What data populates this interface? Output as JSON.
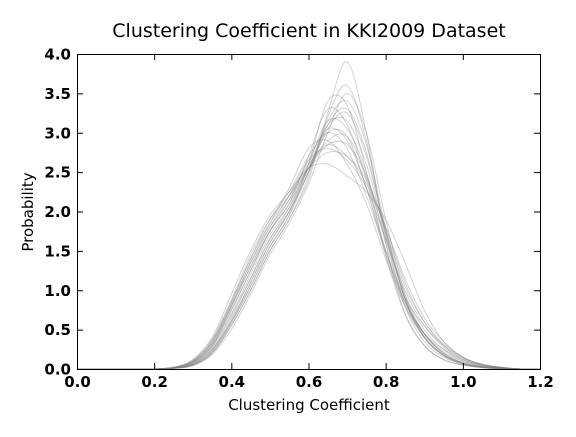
{
  "chart_data": {
    "type": "line",
    "title": "Clustering Coefficient in KKI2009 Dataset",
    "xlabel": "Clustering Coefficient",
    "ylabel": "Probability",
    "xlim": [
      0.0,
      1.2
    ],
    "ylim": [
      0.0,
      4.0
    ],
    "x_ticks": [
      "0.0",
      "0.2",
      "0.4",
      "0.6",
      "0.8",
      "1.0",
      "1.2"
    ],
    "y_ticks": [
      "0.0",
      "0.5",
      "1.0",
      "1.5",
      "2.0",
      "2.5",
      "3.0",
      "3.5",
      "4.0"
    ],
    "grid": false,
    "legend": "none",
    "line_color": "#808080",
    "x_grid": [
      0.0,
      0.05,
      0.1,
      0.15,
      0.2,
      0.25,
      0.3,
      0.35,
      0.4,
      0.45,
      0.5,
      0.55,
      0.6,
      0.65,
      0.7,
      0.75,
      0.8,
      0.85,
      0.9,
      0.95,
      1.0,
      1.05,
      1.1,
      1.15,
      1.2
    ],
    "series": [
      {
        "values": [
          0,
          0,
          0,
          0,
          0,
          0.01,
          0.06,
          0.25,
          0.6,
          1.05,
          1.55,
          1.95,
          2.55,
          3.0,
          2.95,
          2.3,
          1.45,
          0.85,
          0.45,
          0.2,
          0.08,
          0.03,
          0.01,
          0,
          0
        ]
      },
      {
        "values": [
          0,
          0,
          0,
          0,
          0,
          0.02,
          0.1,
          0.35,
          0.85,
          1.4,
          1.85,
          2.2,
          2.6,
          2.85,
          2.7,
          2.35,
          1.8,
          1.15,
          0.65,
          0.35,
          0.15,
          0.05,
          0.02,
          0,
          0
        ]
      },
      {
        "values": [
          0,
          0,
          0,
          0,
          0,
          0.01,
          0.05,
          0.2,
          0.55,
          1.0,
          1.5,
          1.9,
          2.45,
          3.25,
          3.9,
          3.0,
          1.6,
          0.7,
          0.3,
          0.12,
          0.05,
          0.02,
          0,
          0,
          0
        ]
      },
      {
        "values": [
          0,
          0,
          0,
          0,
          0,
          0.01,
          0.08,
          0.3,
          0.75,
          1.25,
          1.75,
          2.1,
          2.7,
          3.3,
          3.1,
          2.4,
          1.5,
          0.8,
          0.4,
          0.18,
          0.07,
          0.02,
          0.01,
          0,
          0
        ]
      },
      {
        "values": [
          0,
          0,
          0,
          0,
          0,
          0.02,
          0.09,
          0.32,
          0.8,
          1.35,
          1.85,
          2.3,
          2.8,
          2.9,
          2.6,
          2.1,
          1.4,
          0.8,
          0.45,
          0.25,
          0.12,
          0.05,
          0.02,
          0,
          0
        ]
      },
      {
        "values": [
          0,
          0,
          0,
          0,
          0,
          0.01,
          0.04,
          0.18,
          0.5,
          0.95,
          1.45,
          1.85,
          2.35,
          3.0,
          3.5,
          3.0,
          1.9,
          0.95,
          0.45,
          0.2,
          0.08,
          0.03,
          0.01,
          0,
          0
        ]
      },
      {
        "values": [
          0,
          0,
          0,
          0,
          0,
          0.02,
          0.12,
          0.4,
          0.95,
          1.5,
          1.95,
          2.25,
          2.55,
          2.6,
          2.45,
          2.25,
          1.9,
          1.35,
          0.75,
          0.35,
          0.15,
          0.06,
          0.02,
          0,
          0
        ]
      },
      {
        "values": [
          0,
          0,
          0,
          0,
          0,
          0.01,
          0.07,
          0.28,
          0.7,
          1.2,
          1.7,
          2.05,
          2.55,
          3.1,
          3.15,
          2.6,
          1.7,
          0.9,
          0.45,
          0.2,
          0.08,
          0.03,
          0.01,
          0,
          0
        ]
      },
      {
        "values": [
          0,
          0,
          0,
          0,
          0,
          0.01,
          0.05,
          0.22,
          0.6,
          1.1,
          1.6,
          2.0,
          2.6,
          3.4,
          3.35,
          2.5,
          1.45,
          0.7,
          0.3,
          0.12,
          0.05,
          0.02,
          0,
          0,
          0
        ]
      },
      {
        "values": [
          0,
          0,
          0,
          0,
          0,
          0.02,
          0.1,
          0.36,
          0.85,
          1.4,
          1.9,
          2.25,
          2.7,
          3.0,
          2.8,
          2.2,
          1.5,
          0.9,
          0.55,
          0.3,
          0.14,
          0.06,
          0.02,
          0,
          0
        ]
      },
      {
        "values": [
          0,
          0,
          0,
          0,
          0,
          0.01,
          0.06,
          0.24,
          0.65,
          1.15,
          1.65,
          2.0,
          2.5,
          3.05,
          3.25,
          2.7,
          1.75,
          0.9,
          0.42,
          0.18,
          0.07,
          0.02,
          0.01,
          0,
          0
        ]
      },
      {
        "values": [
          0,
          0,
          0,
          0,
          0,
          0.02,
          0.08,
          0.3,
          0.78,
          1.3,
          1.8,
          2.2,
          2.65,
          2.8,
          2.65,
          2.3,
          1.65,
          1.0,
          0.55,
          0.28,
          0.12,
          0.05,
          0.02,
          0,
          0
        ]
      },
      {
        "values": [
          0,
          0,
          0,
          0,
          0,
          0.01,
          0.05,
          0.2,
          0.55,
          1.0,
          1.5,
          1.9,
          2.4,
          3.2,
          3.6,
          2.9,
          1.7,
          0.8,
          0.35,
          0.15,
          0.06,
          0.02,
          0,
          0,
          0
        ]
      },
      {
        "values": [
          0,
          0,
          0,
          0,
          0,
          0.02,
          0.09,
          0.33,
          0.8,
          1.3,
          1.75,
          2.1,
          2.55,
          2.9,
          2.95,
          2.45,
          1.65,
          0.95,
          0.5,
          0.25,
          0.1,
          0.04,
          0.01,
          0,
          0
        ]
      },
      {
        "values": [
          0,
          0,
          0,
          0,
          0,
          0.01,
          0.07,
          0.26,
          0.68,
          1.15,
          1.65,
          2.05,
          2.6,
          3.15,
          3.05,
          2.5,
          1.6,
          0.85,
          0.4,
          0.18,
          0.07,
          0.03,
          0.01,
          0,
          0
        ]
      },
      {
        "values": [
          0,
          0,
          0,
          0,
          0,
          0.01,
          0.06,
          0.23,
          0.62,
          1.1,
          1.6,
          2.0,
          2.5,
          3.1,
          3.3,
          2.75,
          1.75,
          0.88,
          0.4,
          0.17,
          0.07,
          0.02,
          0.01,
          0,
          0
        ]
      },
      {
        "values": [
          0,
          0,
          0,
          0,
          0,
          0.02,
          0.11,
          0.38,
          0.88,
          1.45,
          1.9,
          2.2,
          2.55,
          2.75,
          2.7,
          2.4,
          1.8,
          1.1,
          0.6,
          0.3,
          0.13,
          0.05,
          0.02,
          0,
          0
        ]
      },
      {
        "values": [
          0,
          0,
          0,
          0,
          0,
          0.01,
          0.05,
          0.21,
          0.58,
          1.05,
          1.55,
          1.95,
          2.5,
          3.15,
          3.4,
          2.85,
          1.8,
          0.9,
          0.4,
          0.17,
          0.06,
          0.02,
          0.01,
          0,
          0
        ]
      },
      {
        "values": [
          0,
          0,
          0,
          0,
          0,
          0.01,
          0.08,
          0.29,
          0.74,
          1.25,
          1.75,
          2.15,
          2.65,
          3.05,
          2.9,
          2.3,
          1.5,
          0.85,
          0.45,
          0.22,
          0.1,
          0.04,
          0.01,
          0,
          0
        ]
      },
      {
        "values": [
          0,
          0,
          0,
          0,
          0,
          0.02,
          0.1,
          0.34,
          0.82,
          1.35,
          1.8,
          2.15,
          2.55,
          2.85,
          2.85,
          2.45,
          1.75,
          1.05,
          0.6,
          0.32,
          0.15,
          0.06,
          0.02,
          0,
          0
        ]
      }
    ]
  }
}
